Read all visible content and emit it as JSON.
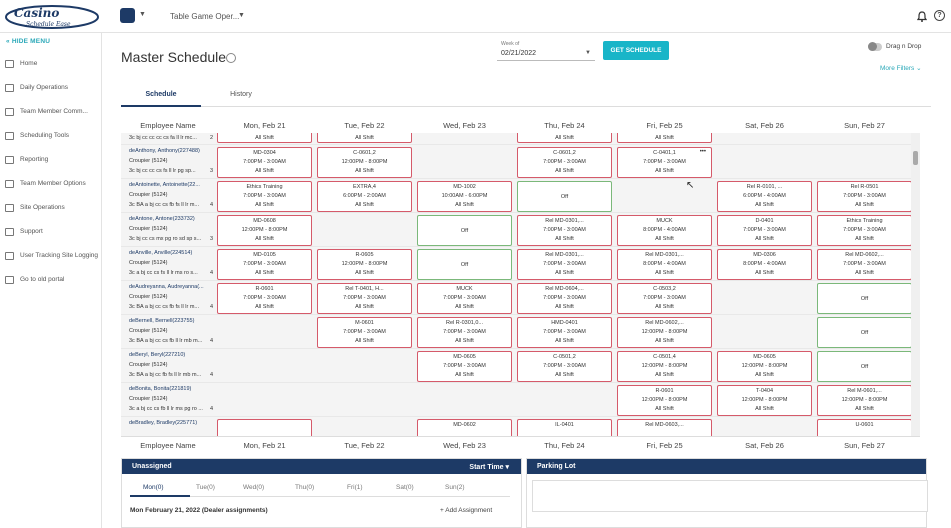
{
  "app": {
    "logo_line1": "Casino",
    "logo_line2": "Schedule Ease",
    "title": "Table Game Oper..."
  },
  "sidebar": {
    "hide_label": "HIDE MENU",
    "items": [
      {
        "label": "Home",
        "icon": "bar-chart-icon"
      },
      {
        "label": "Daily Operations",
        "icon": "briefcase-icon"
      },
      {
        "label": "Team Member Comm...",
        "icon": "message-icon"
      },
      {
        "label": "Scheduling Tools",
        "icon": "calendar-icon"
      },
      {
        "label": "Reporting",
        "icon": "report-icon"
      },
      {
        "label": "Team Member Options",
        "icon": "users-icon"
      },
      {
        "label": "Site Operations",
        "icon": "site-icon"
      },
      {
        "label": "Support",
        "icon": "support-icon"
      },
      {
        "label": "User Tracking Site Logging",
        "icon": "tracking-icon"
      },
      {
        "label": "Go to old portal",
        "icon": "portal-icon"
      }
    ]
  },
  "page": {
    "title": "Master Schedule",
    "week_label": "Week of",
    "week_value": "02/21/2022",
    "get_button": "GET SCHEDULE",
    "drag_label": "Drag n Drop",
    "more_filters": "More Filters",
    "tabs": [
      "Schedule",
      "History"
    ]
  },
  "grid": {
    "employee_header": "Employee Name",
    "days": [
      "Mon, Feb 21",
      "Tue, Feb 22",
      "Wed, Feb 23",
      "Thu, Feb 24",
      "Fri, Feb 25",
      "Sat, Feb 26",
      "Sun, Feb 27"
    ],
    "top_partial": {
      "line": "3c bj cc cc cc cs fa ll lr mc...",
      "count": "2",
      "cells": [
        "All Shift",
        "All Shift",
        "",
        "All Shift",
        "All Shift",
        "",
        ""
      ]
    },
    "rows": [
      {
        "name": "deAnthony, Anthony(227488)",
        "role": "Croupier (5124)",
        "skills": "3c bj cc cc cs fs ll lr pg sp...",
        "count": "3",
        "cells": [
          [
            "MD-0304",
            "7:00PM - 3:00AM",
            "All Shift"
          ],
          [
            "C-0601,2",
            "12:00PM - 8:00PM",
            "All Shift"
          ],
          null,
          [
            "C-0601,2",
            "7:00PM - 3:00AM",
            "All Shift"
          ],
          [
            "C-0401,1",
            "7:00PM - 3:00AM",
            "All Shift"
          ],
          null,
          null
        ]
      },
      {
        "name": "deAntoinette, Antoinette(22...",
        "role": "Croupier (5124)",
        "skills": "3c BA a bj cc cs fb fs ll lr m...",
        "count": "4",
        "cells": [
          [
            "Ethics Training",
            "7:00PM - 3:00AM",
            "All Shift"
          ],
          [
            "EXTRA,4",
            "6:00PM - 2:00AM",
            "All Shift"
          ],
          [
            "MD-1002",
            "10:00AM - 6:00PM",
            "All Shift"
          ],
          "Off",
          null,
          [
            "Rel R-0101, ...",
            "6:00PM - 4:00AM",
            "All Shift"
          ],
          [
            "Rel R-0501",
            "7:00PM - 3:00AM",
            "All Shift"
          ]
        ]
      },
      {
        "name": "deAntone, Antone(233732)",
        "role": "Croupier (5124)",
        "skills": "3c bj cc cs mx pg ro sd sp s...",
        "count": "3",
        "cells": [
          [
            "MD-0608",
            "12:00PM - 8:00PM",
            "All Shift"
          ],
          null,
          "Off",
          [
            "Rel MD-0301,...",
            "7:00PM - 3:00AM",
            "All Shift"
          ],
          [
            "MUCK",
            "8:00PM - 4:00AM",
            "All Shift"
          ],
          [
            "D-0401",
            "7:00PM - 3:00AM",
            "All Shift"
          ],
          [
            "Ethics Training",
            "7:00PM - 3:00AM",
            "All Shift"
          ]
        ]
      },
      {
        "name": "deAnville, Anville(224514)",
        "role": "Croupier (5124)",
        "skills": "3c a bj cc cs fs ll lr ms ro s...",
        "count": "4",
        "cells": [
          [
            "MD-0105",
            "7:00PM - 3:00AM",
            "All Shift"
          ],
          [
            "R-0605",
            "12:00PM - 8:00PM",
            "All Shift"
          ],
          "Off",
          [
            "Rel MD-0301,...",
            "7:00PM - 3:00AM",
            "All Shift"
          ],
          [
            "Rel MD-0301,...",
            "8:00PM - 4:00AM",
            "All Shift"
          ],
          [
            "MD-0306",
            "8:00PM - 4:00AM",
            "All Shift"
          ],
          [
            "Rel MD-0602,...",
            "7:00PM - 3:00AM",
            "All Shift"
          ]
        ]
      },
      {
        "name": "deAudreyanna, Audreyanna(...",
        "role": "Croupier (5124)",
        "skills": "3c BA a bj cc cs fb fs ll lr m...",
        "count": "4",
        "cells": [
          [
            "R-0601",
            "7:00PM - 3:00AM",
            "All Shift"
          ],
          [
            "Rel T-0401, H...",
            "7:00PM - 3:00AM",
            "All Shift"
          ],
          [
            "MUCK",
            "7:00PM - 3:00AM",
            "All Shift"
          ],
          [
            "Rel MD-0604,...",
            "7:00PM - 3:00AM",
            "All Shift"
          ],
          [
            "C-0503,2",
            "7:00PM - 3:00AM",
            "All Shift"
          ],
          null,
          "Off"
        ]
      },
      {
        "name": "deBernell, Bernell(223755)",
        "role": "Croupier (5124)",
        "skills": "3c BA a bj cc cs fb ll lr mb m...",
        "count": "4",
        "cells": [
          null,
          [
            "M-0601",
            "7:00PM - 3:00AM",
            "All Shift"
          ],
          [
            "Rel R-0301,0...",
            "7:00PM - 3:00AM",
            "All Shift"
          ],
          [
            "HMD-0401",
            "7:00PM - 3:00AM",
            "All Shift"
          ],
          [
            "Rel MD-0602,...",
            "12:00PM - 8:00PM",
            "All Shift"
          ],
          null,
          "Off"
        ]
      },
      {
        "name": "deBeryl, Beryl(227210)",
        "role": "Croupier (5124)",
        "skills": "3c BA a bj cc fb fs ll lr mb m...",
        "count": "4",
        "cells": [
          null,
          null,
          [
            "MD-0605",
            "7:00PM - 3:00AM",
            "All Shift"
          ],
          [
            "C-0501,2",
            "7:00PM - 3:00AM",
            "All Shift"
          ],
          [
            "C-0501,4",
            "12:00PM - 8:00PM",
            "All Shift"
          ],
          [
            "MD-0605",
            "12:00PM - 8:00PM",
            "All Shift"
          ],
          "Off"
        ]
      },
      {
        "name": "deBonita, Bonita(221819)",
        "role": "Croupier (5124)",
        "skills": "3c a bj cc cs fb ll lr ms pg ro ...",
        "count": "4",
        "cells": [
          null,
          null,
          null,
          null,
          [
            "R-0601",
            "12:00PM - 8:00PM",
            "All Shift"
          ],
          [
            "T-0404",
            "12:00PM - 8:00PM",
            "All Shift"
          ],
          [
            "Rel M-0601,...",
            "12:00PM - 8:00PM",
            "All Shift"
          ]
        ]
      },
      {
        "name": "deBradley, Bradley(225771)",
        "role": "",
        "skills": "",
        "count": "",
        "cells": [
          [
            "",
            "",
            ""
          ],
          null,
          [
            "MD-0602",
            "",
            ""
          ],
          [
            "IL-0401",
            "",
            ""
          ],
          [
            "Rel MD-0603,...",
            "",
            ""
          ],
          null,
          [
            "U-0601",
            "",
            ""
          ]
        ]
      }
    ]
  },
  "unassigned": {
    "title": "Unassigned",
    "sort": "Start Time",
    "days": [
      "Mon(0)",
      "Tue(0)",
      "Wed(0)",
      "Thu(0)",
      "Fri(1)",
      "Sat(0)",
      "Sun(2)"
    ],
    "dealer_line": "Mon February 21, 2022 (Dealer assignments)",
    "add_label": "+ Add Assignment"
  },
  "parking": {
    "title": "Parking Lot"
  },
  "colors": {
    "navy": "#1d3a66",
    "teal": "#19b5c8",
    "assigned_border": "#d55a6a",
    "off_border": "#7bb87a"
  }
}
